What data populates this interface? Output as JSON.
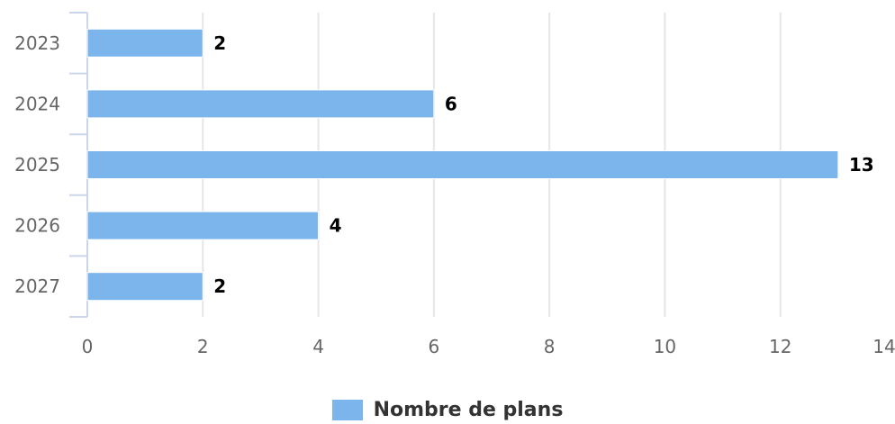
{
  "chart_data": {
    "type": "bar",
    "orientation": "horizontal",
    "categories": [
      "2023",
      "2024",
      "2025",
      "2026",
      "2027"
    ],
    "series": [
      {
        "name": "Nombre de plans",
        "values": [
          2,
          6,
          13,
          4,
          2
        ],
        "color": "#7cb5ec"
      }
    ],
    "xlim": [
      0,
      14
    ],
    "x_ticks": [
      "0",
      "2",
      "4",
      "6",
      "8",
      "10",
      "12",
      "14"
    ],
    "grid": true,
    "legend_position": "bottom-center",
    "data_labels": true
  }
}
